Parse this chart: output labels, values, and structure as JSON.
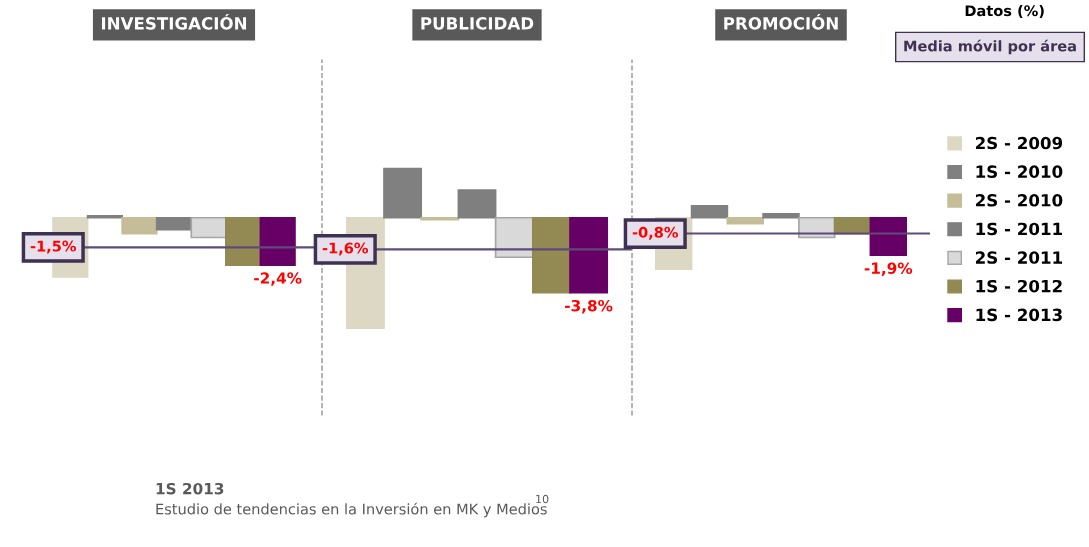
{
  "chart_data": [
    {
      "type": "bar",
      "title": "INVESTIGACIÓN",
      "categories": [
        null
      ],
      "ylim": [
        -10,
        8
      ],
      "tick_labels": false,
      "legend": false,
      "series": [
        {
          "color": "#ddd8c4",
          "values": [
            -3.0
          ]
        },
        {
          "color": "#808080",
          "values": [
            0.1
          ]
        },
        {
          "color": "#c4bd97",
          "values": [
            -0.8
          ]
        },
        {
          "color": "#7f7f7f",
          "values": [
            -0.6
          ]
        },
        {
          "color": "#d9d9d9",
          "values": [
            -1.0
          ]
        },
        {
          "color": "#938953",
          "values": [
            -2.4
          ]
        },
        {
          "color": "#660066",
          "values": [
            -2.4
          ],
          "value_labels": [
            "-2,4%"
          ]
        }
      ],
      "ref_lines": [
        {
          "axis": "y",
          "value": -1.5,
          "label": "-1,5%",
          "color": "#5f4b7a"
        }
      ],
      "annotations": [
        "1S 2013",
        "Estudio de tendencias en la Inversión en MK y Medios",
        "10"
      ]
    },
    {
      "type": "bar",
      "title": "PUBLICIDAD",
      "categories": [
        null
      ],
      "ylim": [
        -10,
        8
      ],
      "tick_labels": false,
      "legend": false,
      "series": [
        {
          "color": "#ddd8c4",
          "values": [
            -5.6
          ]
        },
        {
          "color": "#808080",
          "values": [
            2.5
          ]
        },
        {
          "color": "#c4bd97",
          "values": [
            -0.1
          ]
        },
        {
          "color": "#7f7f7f",
          "values": [
            1.4
          ]
        },
        {
          "color": "#d9d9d9",
          "values": [
            -2.0
          ]
        },
        {
          "color": "#938953",
          "values": [
            -3.8
          ]
        },
        {
          "color": "#660066",
          "values": [
            -3.8
          ],
          "value_labels": [
            "-3,8%"
          ]
        }
      ],
      "ref_lines": [
        {
          "axis": "y",
          "value": -1.6,
          "label": "-1,6%",
          "color": "#5f4b7a"
        }
      ]
    },
    {
      "type": "bar",
      "title": "PROMOCIÓN",
      "categories": [
        null
      ],
      "ylim": [
        -10,
        8
      ],
      "tick_labels": false,
      "legend": "right",
      "series": [
        {
          "name": "2S - 2009",
          "color": "#ddd8c4",
          "values": [
            -2.6
          ]
        },
        {
          "name": "1S - 2010",
          "color": "#808080",
          "values": [
            0.6
          ]
        },
        {
          "name": "2S - 2010",
          "color": "#c4bd97",
          "values": [
            -0.3
          ]
        },
        {
          "name": "1S - 2011",
          "color": "#7f7f7f",
          "values": [
            0.2
          ]
        },
        {
          "name": "2S - 2011",
          "color": "#d9d9d9",
          "values": [
            -1.0
          ]
        },
        {
          "name": "1S - 2012",
          "color": "#938953",
          "values": [
            -0.8
          ]
        },
        {
          "name": "1S - 2013",
          "color": "#660066",
          "values": [
            -1.9
          ],
          "value_labels": [
            "-1,9%"
          ]
        }
      ],
      "ref_lines": [
        {
          "axis": "y",
          "value": -0.8,
          "label": "-0,8%",
          "color": "#5f4b7a"
        }
      ],
      "annotations": [
        "Datos (%)",
        "Media móvil por área"
      ]
    }
  ]
}
